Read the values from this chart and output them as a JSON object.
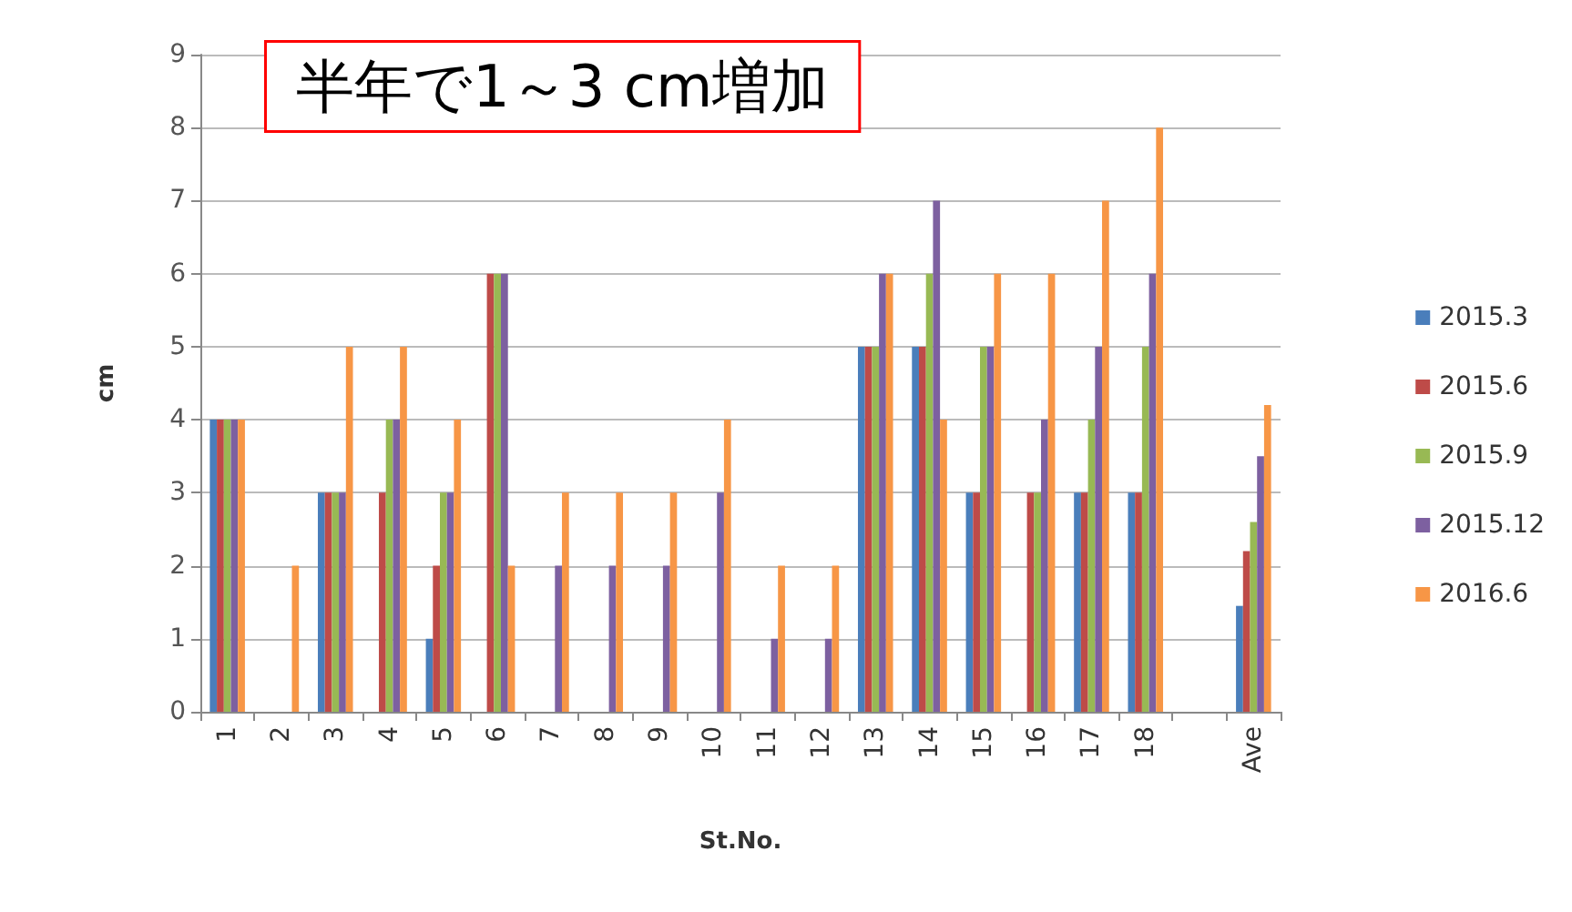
{
  "chart_data": {
    "type": "bar",
    "xlabel": "St.No.",
    "ylabel": "cm",
    "annotations": [
      "半年で1～3 cm増加"
    ],
    "categories": [
      "1",
      "2",
      "3",
      "4",
      "5",
      "6",
      "7",
      "8",
      "9",
      "10",
      "11",
      "12",
      "13",
      "14",
      "15",
      "16",
      "17",
      "18",
      null,
      "Ave"
    ],
    "series": [
      {
        "name": "2015.3",
        "color": "#4a7ebb",
        "values": [
          4,
          0,
          3,
          0,
          1,
          0,
          0,
          0,
          0,
          0,
          0,
          0,
          5,
          5,
          3,
          0,
          3,
          3,
          null,
          1.45
        ]
      },
      {
        "name": "2015.6",
        "color": "#be4b48",
        "values": [
          4,
          0,
          3,
          3,
          2,
          6,
          0,
          0,
          0,
          0,
          0,
          0,
          5,
          5,
          3,
          3,
          3,
          3,
          null,
          2.2
        ]
      },
      {
        "name": "2015.9",
        "color": "#98b954",
        "values": [
          4,
          0,
          3,
          4,
          3,
          6,
          0,
          0,
          0,
          0,
          0,
          0,
          5,
          6,
          5,
          3,
          4,
          5,
          null,
          2.6
        ]
      },
      {
        "name": "2015.12",
        "color": "#7d60a0",
        "values": [
          4,
          0,
          3,
          4,
          3,
          6,
          2,
          2,
          2,
          3,
          1,
          1,
          6,
          7,
          5,
          4,
          5,
          6,
          null,
          3.5
        ]
      },
      {
        "name": "2016.6",
        "color": "#f79646",
        "values": [
          4,
          2,
          5,
          5,
          4,
          2,
          3,
          3,
          3,
          4,
          2,
          2,
          6,
          4,
          6,
          6,
          7,
          8,
          null,
          4.2
        ]
      }
    ],
    "ylim": [
      0,
      9
    ],
    "yticks": [
      0,
      1,
      2,
      3,
      4,
      5,
      6,
      7,
      8,
      9
    ],
    "grid": "y",
    "legend": "right"
  }
}
